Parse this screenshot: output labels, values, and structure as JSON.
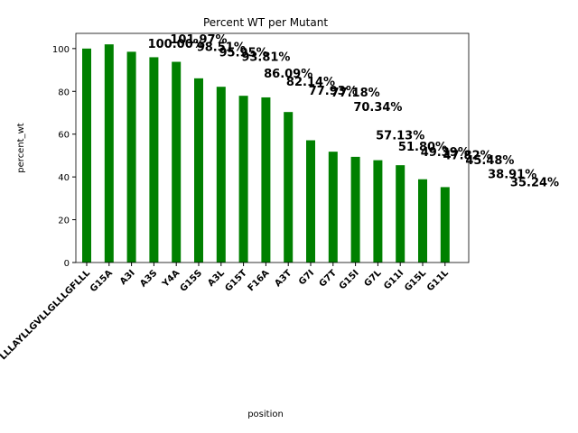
{
  "chart_data": {
    "type": "bar",
    "title": "Percent WT per Mutant",
    "x_label": "position",
    "y_label": "percent_wt",
    "categories": [
      "LLLAYLLGVLLGLLLGFLLL",
      "G15A",
      "A3I",
      "A3S",
      "Y4A",
      "G15S",
      "A3L",
      "G15T",
      "F16A",
      "A3T",
      "G7I",
      "G7T",
      "G15I",
      "G7L",
      "G11I",
      "G15L",
      "G11L"
    ],
    "values": [
      100.0,
      101.97,
      98.51,
      95.95,
      93.81,
      86.09,
      82.14,
      77.93,
      77.18,
      70.34,
      57.13,
      51.8,
      49.39,
      47.82,
      45.48,
      38.91,
      35.24
    ],
    "value_labels": [
      "100.00%",
      "101.97%",
      "98.51%",
      "95.95%",
      "93.81%",
      "86.09%",
      "82.14%",
      "77.93%",
      "77.18%",
      "70.34%",
      "57.13%",
      "51.80%",
      "49.39%",
      "47.82%",
      "45.48%",
      "38.91%",
      "35.24%"
    ],
    "color": "#008000",
    "ylim": [
      0,
      107.1
    ],
    "yticks": [
      0,
      20,
      40,
      60,
      80,
      100
    ],
    "grid": false
  }
}
